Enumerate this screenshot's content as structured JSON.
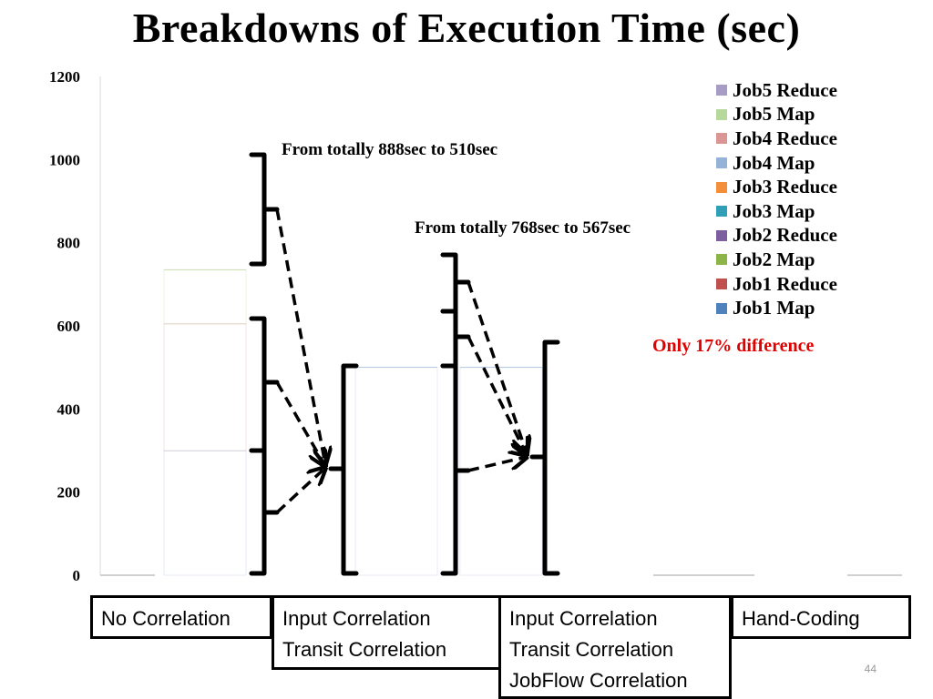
{
  "title": "Breakdowns of Execution Time (sec)",
  "page_number": "44",
  "colors": {
    "job5_reduce": "#a79cc6",
    "job5_map": "#b6d89b",
    "job4_reduce": "#d99694",
    "job4_map": "#95b3d7",
    "job3_reduce": "#f38f3b",
    "job3_map": "#31a0b7",
    "job2_reduce": "#7d5fa0",
    "job2_map": "#8cb449",
    "job1_reduce": "#c0504d",
    "job1_map": "#4f81bd",
    "annotation_red": "#e00000"
  },
  "annotations": {
    "first": "From totally 888sec to 510sec",
    "second": "From totally 768sec to 567sec",
    "difference": "Only 17% difference"
  },
  "category_boxes": [
    {
      "lines": [
        "No Correlation"
      ]
    },
    {
      "lines": [
        "Input Correlation",
        "Transit Correlation"
      ]
    },
    {
      "lines": [
        "Input Correlation",
        "Transit Correlation",
        "JobFlow Correlation"
      ]
    },
    {
      "lines": [
        "Hand-Coding"
      ]
    }
  ],
  "chart_data": {
    "type": "bar",
    "stacked": true,
    "ylim": [
      0,
      1200
    ],
    "yticks": [
      "0",
      "200",
      "400",
      "600",
      "800",
      "1000",
      "1200"
    ],
    "categories": [
      "No Correlation",
      "Input Correlation Transit Correlation",
      "Input Correlation Transit Correlation JobFlow Correlation",
      "Hand-Coding"
    ],
    "legend_position": "top-right",
    "grid": false,
    "series": [
      {
        "name": "Job1 Map",
        "values": [
          300,
          500,
          500,
          0
        ]
      },
      {
        "name": "Job1 Reduce",
        "values": [
          305,
          0,
          0,
          0
        ]
      },
      {
        "name": "Job2 Map",
        "values": [
          130,
          0,
          0,
          0
        ]
      },
      {
        "name": "Job2 Reduce",
        "values": [
          0,
          0,
          0,
          0
        ]
      },
      {
        "name": "Job3 Map",
        "values": [
          0,
          0,
          0,
          0
        ]
      },
      {
        "name": "Job3 Reduce",
        "values": [
          0,
          0,
          0,
          0
        ]
      },
      {
        "name": "Job4 Map",
        "values": [
          0,
          0,
          0,
          0
        ]
      },
      {
        "name": "Job4 Reduce",
        "values": [
          0,
          0,
          0,
          0
        ]
      },
      {
        "name": "Job5 Map",
        "values": [
          0,
          0,
          0,
          0
        ]
      },
      {
        "name": "Job5 Reduce",
        "values": [
          0,
          0,
          0,
          0
        ]
      }
    ],
    "legend_entries": [
      "Job5 Reduce",
      "Job5 Map",
      "Job4 Reduce",
      "Job4 Map",
      "Job3 Reduce",
      "Job3 Map",
      "Job2 Reduce",
      "Job2 Map",
      "Job1 Reduce",
      "Job1 Map"
    ]
  }
}
